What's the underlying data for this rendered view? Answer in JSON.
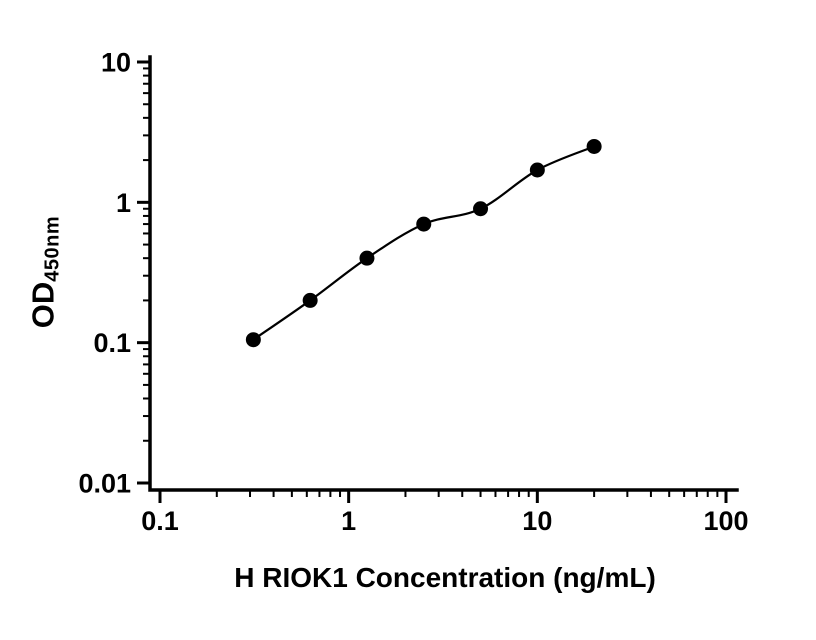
{
  "figure": {
    "background": "#ffffff"
  },
  "chart_data": {
    "type": "scatter",
    "title": "",
    "xlabel": "H RIOK1 Concentration (ng/mL)",
    "ylabel_main": "OD",
    "ylabel_sub": "450nm",
    "x_scale": "log",
    "y_scale": "log",
    "xlim": [
      0.1,
      100
    ],
    "ylim": [
      0.01,
      10
    ],
    "x_ticks": [
      0.1,
      1,
      10,
      100
    ],
    "x_tick_labels": [
      "0.1",
      "1",
      "10",
      "100"
    ],
    "y_ticks": [
      0.01,
      0.1,
      1,
      10
    ],
    "y_tick_labels": [
      "0.01",
      "0.1",
      "1",
      "10"
    ],
    "grid": false,
    "legend": "none",
    "axis_color": "#000000",
    "series": [
      {
        "name": "standard-curve",
        "marker": "circle",
        "marker_color": "#000000",
        "line_color": "#000000",
        "x": [
          0.3125,
          0.625,
          1.25,
          2.5,
          5,
          10,
          20
        ],
        "y": [
          0.105,
          0.2,
          0.4,
          0.7,
          0.9,
          1.7,
          2.5
        ]
      }
    ]
  }
}
